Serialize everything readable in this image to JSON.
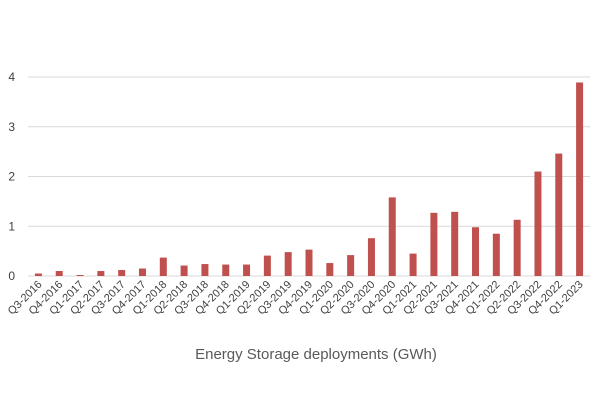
{
  "chart_data": {
    "type": "bar",
    "title": "",
    "xlabel": "Energy Storage deployments (GWh)",
    "ylabel": "",
    "ylim": [
      0,
      4
    ],
    "yticks": [
      "0",
      "1",
      "2",
      "3",
      "4"
    ],
    "grid": true,
    "bar_color": "#c0504d",
    "categories": [
      "Q3-2016",
      "Q4-2016",
      "Q1-2017",
      "Q2-2017",
      "Q3-2017",
      "Q4-2017",
      "Q1-2018",
      "Q2-2018",
      "Q3-2018",
      "Q4-2018",
      "Q1-2019",
      "Q2-2019",
      "Q3-2019",
      "Q4-2019",
      "Q1-2020",
      "Q2-2020",
      "Q3-2020",
      "Q4-2020",
      "Q1-2021",
      "Q2-2021",
      "Q3-2021",
      "Q4-2021",
      "Q1-2022",
      "Q2-2022",
      "Q3-2022",
      "Q4-2022",
      "Q1-2023"
    ],
    "values": [
      0.05,
      0.1,
      0.02,
      0.1,
      0.12,
      0.15,
      0.37,
      0.21,
      0.24,
      0.23,
      0.23,
      0.41,
      0.48,
      0.53,
      0.26,
      0.42,
      0.76,
      1.58,
      0.45,
      1.27,
      1.29,
      0.98,
      0.85,
      1.13,
      2.1,
      2.46,
      3.89
    ]
  }
}
